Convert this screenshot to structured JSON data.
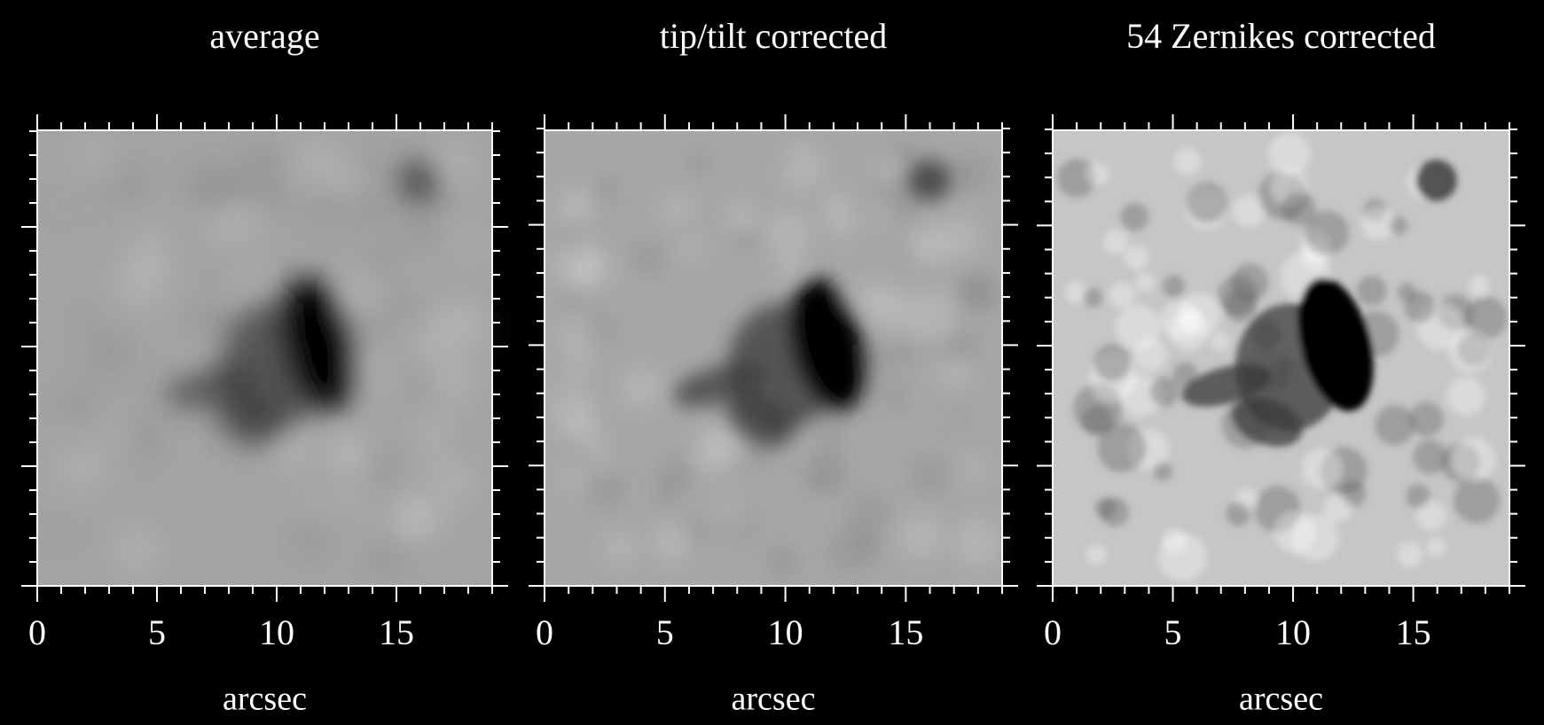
{
  "chart_data": [
    {
      "type": "image",
      "title": "average",
      "xlabel": "arcsec",
      "xlim": [
        0,
        19
      ],
      "xticks": [
        0,
        5,
        10,
        15
      ]
    },
    {
      "type": "image",
      "title": "tip/tilt corrected",
      "xlabel": "arcsec",
      "xlim": [
        0,
        19
      ],
      "xticks": [
        0,
        5,
        10,
        15
      ]
    },
    {
      "type": "image",
      "title": "54 Zernikes corrected",
      "xlabel": "arcsec",
      "xlim": [
        0,
        19
      ],
      "xticks": [
        0,
        5,
        10,
        15
      ]
    }
  ]
}
